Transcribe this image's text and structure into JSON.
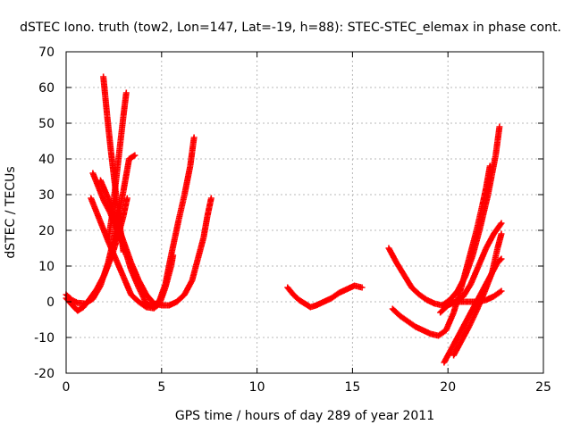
{
  "chart_data": {
    "type": "scatter",
    "title": "dSTEC Iono. truth (tow2, Lon=147, Lat=-19, h=88): STEC-STEC_elemax in phase cont.",
    "xlabel": "GPS time / hours of day 289 of year 2011",
    "ylabel": "dSTEC  / TECUs",
    "xlim": [
      0,
      25
    ],
    "ylim": [
      -20,
      70
    ],
    "xticks": [
      0,
      5,
      10,
      15,
      20,
      25
    ],
    "yticks": [
      -20,
      -10,
      0,
      10,
      20,
      30,
      40,
      50,
      60,
      70
    ],
    "grid": true,
    "marker": "+",
    "series_color": "#ff0000",
    "series": [
      {
        "points": [
          [
            0.0,
            2.0
          ],
          [
            0.3,
            0.5
          ],
          [
            0.6,
            -0.3
          ],
          [
            1.0,
            -0.5
          ],
          [
            1.4,
            0.8
          ],
          [
            1.8,
            4.5
          ],
          [
            2.2,
            11.0
          ],
          [
            2.6,
            20.0
          ],
          [
            3.0,
            31.0
          ],
          [
            3.3,
            40.0
          ],
          [
            3.6,
            41.0
          ]
        ]
      },
      {
        "points": [
          [
            0.0,
            1.0
          ],
          [
            0.3,
            -0.8
          ],
          [
            0.6,
            -2.5
          ],
          [
            0.9,
            -1.5
          ],
          [
            1.2,
            0.5
          ],
          [
            1.6,
            3.5
          ],
          [
            2.0,
            7.5
          ],
          [
            2.4,
            13.0
          ],
          [
            2.7,
            18.0
          ],
          [
            3.0,
            24.0
          ],
          [
            3.2,
            29.0
          ]
        ]
      },
      {
        "points": [
          [
            1.95,
            63.0
          ],
          [
            2.15,
            52.0
          ],
          [
            2.35,
            42.0
          ],
          [
            2.55,
            33.0
          ],
          [
            2.7,
            26.0
          ],
          [
            2.85,
            20.0
          ],
          [
            3.0,
            14.0
          ]
        ]
      },
      {
        "points": [
          [
            3.15,
            58.5
          ],
          [
            3.0,
            52.0
          ],
          [
            2.85,
            45.0
          ],
          [
            2.7,
            38.0
          ],
          [
            2.55,
            31.0
          ],
          [
            2.4,
            24.0
          ],
          [
            2.2,
            17.0
          ]
        ]
      },
      {
        "points": [
          [
            1.4,
            36.0
          ],
          [
            1.7,
            32.0
          ],
          [
            2.0,
            28.0
          ],
          [
            2.3,
            25.0
          ],
          [
            2.6,
            21.0
          ],
          [
            3.0,
            16.0
          ],
          [
            3.4,
            9.0
          ],
          [
            3.8,
            4.0
          ],
          [
            4.2,
            -0.5
          ],
          [
            4.6,
            -1.5
          ],
          [
            4.9,
            0.5
          ],
          [
            5.2,
            5.0
          ],
          [
            5.5,
            13.0
          ],
          [
            5.9,
            23.0
          ],
          [
            6.2,
            30.0
          ],
          [
            6.5,
            38.0
          ],
          [
            6.7,
            46.0
          ]
        ]
      },
      {
        "points": [
          [
            1.3,
            29.0
          ],
          [
            1.6,
            25.0
          ],
          [
            1.9,
            21.0
          ],
          [
            2.2,
            17.0
          ],
          [
            2.6,
            12.0
          ],
          [
            3.0,
            7.0
          ],
          [
            3.4,
            2.0
          ],
          [
            3.8,
            0.0
          ],
          [
            4.2,
            -1.5
          ],
          [
            4.6,
            -1.8
          ],
          [
            4.9,
            -0.5
          ],
          [
            5.2,
            4.0
          ],
          [
            5.5,
            10.0
          ],
          [
            5.6,
            13.0
          ]
        ]
      },
      {
        "points": [
          [
            1.8,
            34.0
          ],
          [
            2.2,
            29.0
          ],
          [
            2.6,
            23.0
          ],
          [
            3.0,
            17.0
          ],
          [
            3.4,
            11.0
          ],
          [
            3.8,
            6.0
          ],
          [
            4.2,
            2.0
          ],
          [
            4.6,
            -0.5
          ],
          [
            5.0,
            -1.0
          ],
          [
            5.4,
            -1.0
          ],
          [
            5.8,
            0.0
          ],
          [
            6.2,
            2.0
          ],
          [
            6.6,
            6.0
          ],
          [
            6.9,
            12.0
          ],
          [
            7.2,
            18.0
          ],
          [
            7.4,
            24.0
          ],
          [
            7.6,
            29.0
          ]
        ]
      },
      {
        "points": [
          [
            11.6,
            4.0
          ],
          [
            11.9,
            2.0
          ],
          [
            12.2,
            0.5
          ],
          [
            12.5,
            -0.5
          ],
          [
            12.8,
            -1.5
          ],
          [
            13.1,
            -1.0
          ],
          [
            13.5,
            0.0
          ],
          [
            13.9,
            1.0
          ],
          [
            14.3,
            2.5
          ],
          [
            14.7,
            3.5
          ],
          [
            15.1,
            4.5
          ],
          [
            15.5,
            4.0
          ]
        ]
      },
      {
        "points": [
          [
            16.9,
            15.0
          ],
          [
            17.3,
            11.0
          ],
          [
            17.7,
            7.5
          ],
          [
            18.1,
            4.0
          ],
          [
            18.5,
            2.0
          ],
          [
            18.9,
            0.5
          ],
          [
            19.3,
            -0.5
          ],
          [
            19.7,
            -1.0
          ],
          [
            20.1,
            0.5
          ],
          [
            20.5,
            3.0
          ],
          [
            20.9,
            7.0
          ],
          [
            21.3,
            13.0
          ],
          [
            21.7,
            21.0
          ],
          [
            22.1,
            30.0
          ],
          [
            22.5,
            41.0
          ],
          [
            22.7,
            49.0
          ]
        ]
      },
      {
        "points": [
          [
            17.1,
            -2.0
          ],
          [
            17.5,
            -4.0
          ],
          [
            17.9,
            -5.5
          ],
          [
            18.3,
            -7.0
          ],
          [
            18.7,
            -8.0
          ],
          [
            19.1,
            -9.0
          ],
          [
            19.5,
            -9.5
          ],
          [
            19.9,
            -8.0
          ],
          [
            20.3,
            -3.0
          ],
          [
            20.7,
            4.0
          ],
          [
            21.1,
            12.0
          ],
          [
            21.5,
            20.0
          ],
          [
            21.8,
            27.0
          ],
          [
            22.0,
            32.0
          ],
          [
            22.2,
            38.0
          ]
        ]
      },
      {
        "points": [
          [
            19.8,
            -17.0
          ],
          [
            20.2,
            -13.0
          ],
          [
            20.6,
            -9.0
          ],
          [
            21.0,
            -5.0
          ],
          [
            21.4,
            -1.0
          ],
          [
            21.8,
            3.0
          ],
          [
            22.2,
            7.0
          ],
          [
            22.6,
            11.0
          ],
          [
            22.8,
            12.0
          ]
        ]
      },
      {
        "points": [
          [
            20.3,
            -15.0
          ],
          [
            20.7,
            -11.0
          ],
          [
            21.1,
            -7.0
          ],
          [
            21.5,
            -2.5
          ],
          [
            21.9,
            2.5
          ],
          [
            22.3,
            8.0
          ],
          [
            22.6,
            15.0
          ],
          [
            22.8,
            19.0
          ]
        ]
      },
      {
        "points": [
          [
            20.0,
            -0.5
          ],
          [
            20.4,
            0.0
          ],
          [
            20.8,
            1.5
          ],
          [
            21.2,
            5.0
          ],
          [
            21.6,
            10.0
          ],
          [
            22.0,
            15.0
          ],
          [
            22.4,
            19.0
          ],
          [
            22.8,
            22.0
          ]
        ]
      },
      {
        "points": [
          [
            19.6,
            -3.0
          ],
          [
            20.0,
            -1.0
          ],
          [
            20.4,
            0.0
          ],
          [
            20.8,
            0.0
          ],
          [
            21.2,
            0.0
          ],
          [
            21.6,
            0.0
          ],
          [
            22.0,
            0.5
          ],
          [
            22.4,
            1.5
          ],
          [
            22.8,
            3.0
          ]
        ]
      }
    ]
  }
}
